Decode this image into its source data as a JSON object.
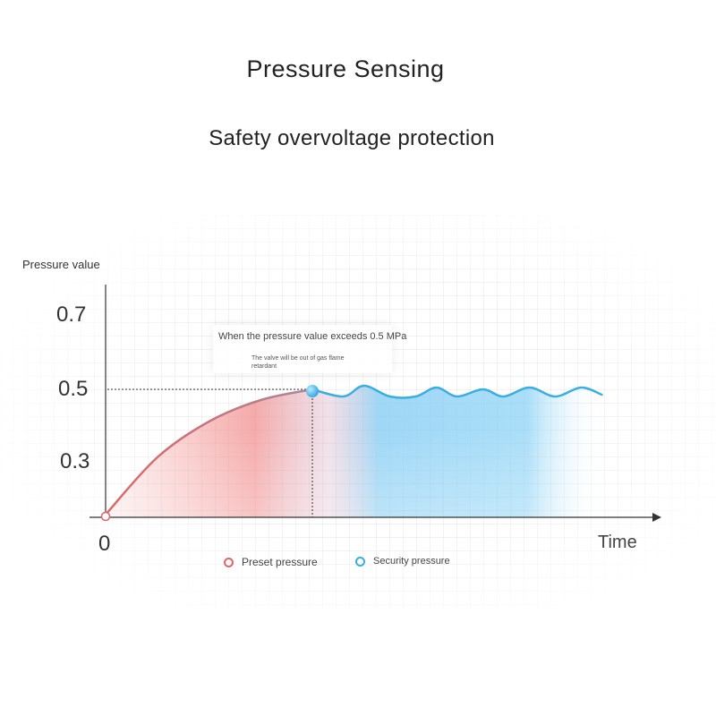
{
  "title": "Pressure Sensing",
  "subtitle": "Safety overvoltage protection",
  "colors": {
    "preset": "#e07a7a",
    "security": "#3aaee0",
    "axis": "#333333"
  },
  "chart_data": {
    "type": "line",
    "title": "Pressure Sensing",
    "subtitle": "Safety overvoltage protection",
    "ylabel": "Pressure value",
    "xlabel": "Time",
    "yticks": [
      "0.7",
      "0.5",
      "0.3"
    ],
    "xticks": [
      "0"
    ],
    "ylim": [
      0.15,
      0.8
    ],
    "grid": true,
    "legend_position": "bottom-center",
    "threshold": 0.5,
    "annotation": {
      "main": "When the pressure value exceeds 0.5 MPa",
      "sub": "The valve will be out of gas flame retardant"
    },
    "series": [
      {
        "name": "Preset pressure",
        "color": "#e07a7a",
        "points": [
          [
            0,
            0.15
          ],
          [
            0.5,
            0.31
          ],
          [
            1,
            0.41
          ],
          [
            1.5,
            0.47
          ],
          [
            2,
            0.5
          ]
        ]
      },
      {
        "name": "Security pressure",
        "color": "#3aaee0",
        "points": [
          [
            2,
            0.5
          ],
          [
            2.3,
            0.48
          ],
          [
            2.5,
            0.51
          ],
          [
            2.75,
            0.48
          ],
          [
            3.0,
            0.48
          ],
          [
            3.2,
            0.505
          ],
          [
            3.4,
            0.48
          ],
          [
            3.65,
            0.5
          ],
          [
            3.85,
            0.48
          ],
          [
            4.1,
            0.505
          ],
          [
            4.35,
            0.48
          ],
          [
            4.6,
            0.505
          ],
          [
            4.8,
            0.485
          ]
        ]
      }
    ]
  }
}
